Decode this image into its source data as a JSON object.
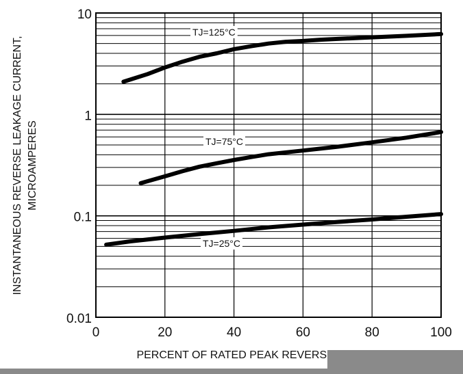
{
  "chart_data": {
    "type": "line",
    "xlabel": "PERCENT OF RATED PEAK REVERSE VOLTAGE, %",
    "ylabel_lines": [
      "INSTANTANEOUS REVERSE LEAKAGE CURRENT,",
      "MICROAMPERES"
    ],
    "xlim": [
      0,
      100
    ],
    "ylim": [
      0.01,
      10
    ],
    "yscale": "log",
    "grid": true,
    "xticks": [
      "0",
      "20",
      "40",
      "60",
      "80",
      "100"
    ],
    "yticks": [
      "0.01",
      "0.1",
      "1",
      "10"
    ],
    "series": [
      {
        "name": "TJ=125°C",
        "x": [
          8,
          15,
          20,
          25,
          30,
          35,
          40,
          45,
          50,
          55,
          60,
          65,
          70,
          80,
          90,
          100
        ],
        "y": [
          2.1,
          2.5,
          2.9,
          3.3,
          3.7,
          4.0,
          4.4,
          4.7,
          5.0,
          5.2,
          5.3,
          5.45,
          5.55,
          5.75,
          5.95,
          6.2
        ]
      },
      {
        "name": "TJ=75°C",
        "x": [
          13,
          20,
          25,
          30,
          35,
          40,
          45,
          50,
          60,
          70,
          80,
          90,
          100
        ],
        "y": [
          0.21,
          0.245,
          0.275,
          0.305,
          0.33,
          0.355,
          0.38,
          0.405,
          0.44,
          0.48,
          0.53,
          0.59,
          0.67
        ]
      },
      {
        "name": "TJ=25°C",
        "x": [
          3,
          10,
          20,
          30,
          40,
          50,
          60,
          70,
          80,
          90,
          100
        ],
        "y": [
          0.052,
          0.056,
          0.061,
          0.066,
          0.071,
          0.077,
          0.082,
          0.087,
          0.092,
          0.098,
          0.104
        ]
      }
    ]
  }
}
